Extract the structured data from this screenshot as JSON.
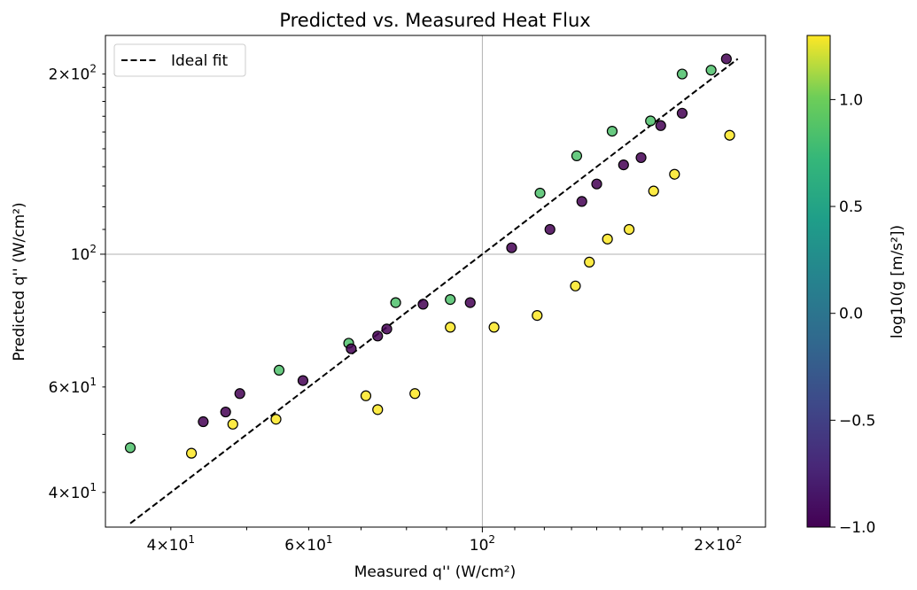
{
  "chart_data": {
    "type": "scatter",
    "title": "Predicted vs. Measured Heat Flux",
    "xlabel": "Measured q'' (W/cm²)",
    "ylabel": "Predicted q'' (W/cm²)",
    "xscale": "log",
    "yscale": "log",
    "xlim": [
      33,
      230
    ],
    "ylim": [
      35,
      232
    ],
    "x_ticks": [
      {
        "value": 40,
        "mant": "4",
        "exp": "1"
      },
      {
        "value": 60,
        "mant": "6",
        "exp": "1"
      },
      {
        "value": 100,
        "mant": "",
        "exp": "2"
      },
      {
        "value": 200,
        "mant": "2",
        "exp": "2"
      }
    ],
    "y_ticks": [
      {
        "value": 40,
        "mant": "4",
        "exp": "1"
      },
      {
        "value": 60,
        "mant": "6",
        "exp": "1"
      },
      {
        "value": 100,
        "mant": "",
        "exp": "2"
      },
      {
        "value": 200,
        "mant": "2",
        "exp": "2"
      }
    ],
    "grid": "major",
    "legend": {
      "position": "top-left",
      "entries": [
        "Ideal fit"
      ]
    },
    "ideal_fit": {
      "x": [
        35.5,
        212
      ],
      "y": [
        35.5,
        212
      ],
      "color": "#000000",
      "style": "dashed"
    },
    "colorbar": {
      "label": "log10(g [m/s²])",
      "range": [
        -1.0,
        1.3
      ],
      "ticks": [
        {
          "value": -1.0,
          "label": "−1.0"
        },
        {
          "value": -0.5,
          "label": "−0.5"
        },
        {
          "value": 0.0,
          "label": "0.0"
        },
        {
          "value": 0.5,
          "label": "0.5"
        },
        {
          "value": 1.0,
          "label": "1.0"
        }
      ]
    },
    "points": [
      {
        "x": 35.5,
        "y": 47.5,
        "c": 0.85
      },
      {
        "x": 42.5,
        "y": 46.5,
        "c": 1.3
      },
      {
        "x": 44,
        "y": 52.5,
        "c": -1.0
      },
      {
        "x": 47,
        "y": 54.5,
        "c": -1.0
      },
      {
        "x": 48,
        "y": 52,
        "c": 1.3
      },
      {
        "x": 49,
        "y": 58.5,
        "c": -1.0
      },
      {
        "x": 54.5,
        "y": 53,
        "c": 1.3
      },
      {
        "x": 55,
        "y": 64,
        "c": 0.85
      },
      {
        "x": 59,
        "y": 61.5,
        "c": -1.0
      },
      {
        "x": 67.5,
        "y": 71,
        "c": 0.85
      },
      {
        "x": 68,
        "y": 69.5,
        "c": -1.0
      },
      {
        "x": 71,
        "y": 58,
        "c": 1.3
      },
      {
        "x": 73.5,
        "y": 55,
        "c": 1.3
      },
      {
        "x": 73.5,
        "y": 73,
        "c": -1.0
      },
      {
        "x": 75.5,
        "y": 75,
        "c": -1.0
      },
      {
        "x": 77.5,
        "y": 83,
        "c": 0.85
      },
      {
        "x": 82,
        "y": 58.5,
        "c": 1.3
      },
      {
        "x": 84,
        "y": 82.5,
        "c": -1.0
      },
      {
        "x": 91,
        "y": 84,
        "c": 0.85
      },
      {
        "x": 91,
        "y": 75.5,
        "c": 1.3
      },
      {
        "x": 96.5,
        "y": 83,
        "c": -1.0
      },
      {
        "x": 103.5,
        "y": 75.5,
        "c": 1.3
      },
      {
        "x": 109,
        "y": 102.5,
        "c": -1.0
      },
      {
        "x": 117.5,
        "y": 79,
        "c": 1.3
      },
      {
        "x": 118.5,
        "y": 126.5,
        "c": 0.85
      },
      {
        "x": 122,
        "y": 110,
        "c": -1.0
      },
      {
        "x": 131.5,
        "y": 88.5,
        "c": 1.3
      },
      {
        "x": 132,
        "y": 146,
        "c": 0.85
      },
      {
        "x": 134,
        "y": 122.5,
        "c": -1.0
      },
      {
        "x": 137,
        "y": 97,
        "c": 1.3
      },
      {
        "x": 140,
        "y": 131,
        "c": -1.0
      },
      {
        "x": 144.5,
        "y": 106,
        "c": 1.3
      },
      {
        "x": 146.5,
        "y": 160.5,
        "c": 0.85
      },
      {
        "x": 151.5,
        "y": 141,
        "c": -1.0
      },
      {
        "x": 154,
        "y": 110,
        "c": 1.3
      },
      {
        "x": 159.5,
        "y": 145,
        "c": -1.0
      },
      {
        "x": 164,
        "y": 167,
        "c": 0.85
      },
      {
        "x": 165.5,
        "y": 127.5,
        "c": 1.3
      },
      {
        "x": 169,
        "y": 164,
        "c": -1.0
      },
      {
        "x": 176,
        "y": 136,
        "c": 1.3
      },
      {
        "x": 180,
        "y": 172,
        "c": -1.0
      },
      {
        "x": 180,
        "y": 200,
        "c": 0.85
      },
      {
        "x": 196,
        "y": 203,
        "c": 0.85
      },
      {
        "x": 205,
        "y": 212,
        "c": -1.0
      },
      {
        "x": 207,
        "y": 158,
        "c": 1.3
      }
    ]
  }
}
